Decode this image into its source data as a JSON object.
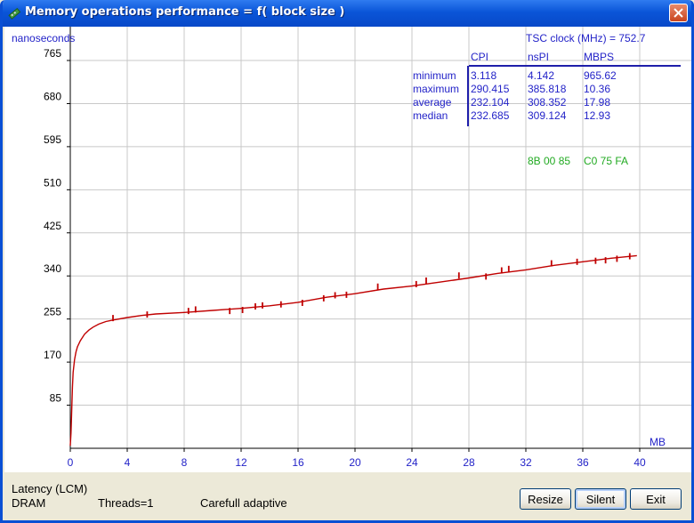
{
  "window": {
    "title": "Memory operations performance = f( block size )"
  },
  "chart_data": {
    "type": "line",
    "ylabel": "nanoseconds",
    "xunit": "MB",
    "xlim": [
      0,
      40
    ],
    "ylim": [
      0,
      765
    ],
    "x_ticks": [
      "0",
      "4",
      "8",
      "12",
      "16",
      "20",
      "24",
      "28",
      "32",
      "36",
      "40"
    ],
    "y_ticks": [
      "85",
      "170",
      "255",
      "340",
      "425",
      "510",
      "595",
      "680",
      "765"
    ],
    "grid": true,
    "series_color": "#c00000",
    "x": [
      0,
      0.05,
      0.1,
      0.15,
      0.2,
      0.3,
      0.4,
      0.5,
      0.7,
      1.0,
      1.3,
      1.6,
      2.0,
      2.5,
      3.0,
      4.0,
      5.0,
      6.0,
      8.0,
      10.0,
      12.0,
      14.0,
      16.0,
      18.0,
      20.0,
      22.0,
      24.0,
      26.0,
      28.0,
      30.0,
      32.0,
      34.0,
      36.0,
      38.0,
      39.8
    ],
    "y": [
      5,
      30,
      75,
      120,
      150,
      175,
      190,
      200,
      212,
      225,
      233,
      239,
      245,
      250,
      253,
      258,
      262,
      265,
      268,
      272,
      276,
      281,
      288,
      298,
      305,
      314,
      320,
      328,
      336,
      345,
      352,
      361,
      368,
      375,
      380
    ],
    "spikes": [
      {
        "x": 3.0,
        "y": 263
      },
      {
        "x": 5.4,
        "y": 270
      },
      {
        "x": 8.3,
        "y": 277
      },
      {
        "x": 8.8,
        "y": 280
      },
      {
        "x": 11.2,
        "y": 277
      },
      {
        "x": 12.1,
        "y": 279
      },
      {
        "x": 13.0,
        "y": 286
      },
      {
        "x": 13.5,
        "y": 288
      },
      {
        "x": 14.8,
        "y": 290
      },
      {
        "x": 16.3,
        "y": 293
      },
      {
        "x": 17.8,
        "y": 302
      },
      {
        "x": 18.6,
        "y": 308
      },
      {
        "x": 19.4,
        "y": 309
      },
      {
        "x": 21.6,
        "y": 325
      },
      {
        "x": 24.3,
        "y": 330
      },
      {
        "x": 25.0,
        "y": 337
      },
      {
        "x": 27.3,
        "y": 347
      },
      {
        "x": 29.2,
        "y": 345
      },
      {
        "x": 30.3,
        "y": 357
      },
      {
        "x": 30.8,
        "y": 360
      },
      {
        "x": 33.8,
        "y": 371
      },
      {
        "x": 35.6,
        "y": 374
      },
      {
        "x": 36.9,
        "y": 376
      },
      {
        "x": 37.6,
        "y": 377
      },
      {
        "x": 38.4,
        "y": 380
      },
      {
        "x": 39.3,
        "y": 385
      }
    ]
  },
  "stats": {
    "tsc_label": "TSC clock (MHz)  =  752.7",
    "columns": [
      "CPI",
      "nsPI",
      "MBPS"
    ],
    "rows": [
      {
        "label": "minimum",
        "values": [
          "3.118",
          "4.142",
          "965.62"
        ]
      },
      {
        "label": "maximum",
        "values": [
          "290.415",
          "385.818",
          "10.36"
        ]
      },
      {
        "label": "average",
        "values": [
          "232.104",
          "308.352",
          "17.98"
        ]
      },
      {
        "label": "median",
        "values": [
          "232.685",
          "309.124",
          "12.93"
        ]
      }
    ],
    "hex_left": "8B  00  85",
    "hex_right": "C0  75  FA"
  },
  "status": {
    "mode": "Latency (LCM)",
    "memory": "DRAM",
    "threads": "Threads=1",
    "method": "Carefull adaptive"
  },
  "buttons": {
    "resize": "Resize",
    "silent": "Silent",
    "exit": "Exit"
  },
  "colors": {
    "text_blue": "#2323c8",
    "hex_green": "#22aa22",
    "grid": "#c8c8c8",
    "axis": "#000000"
  }
}
